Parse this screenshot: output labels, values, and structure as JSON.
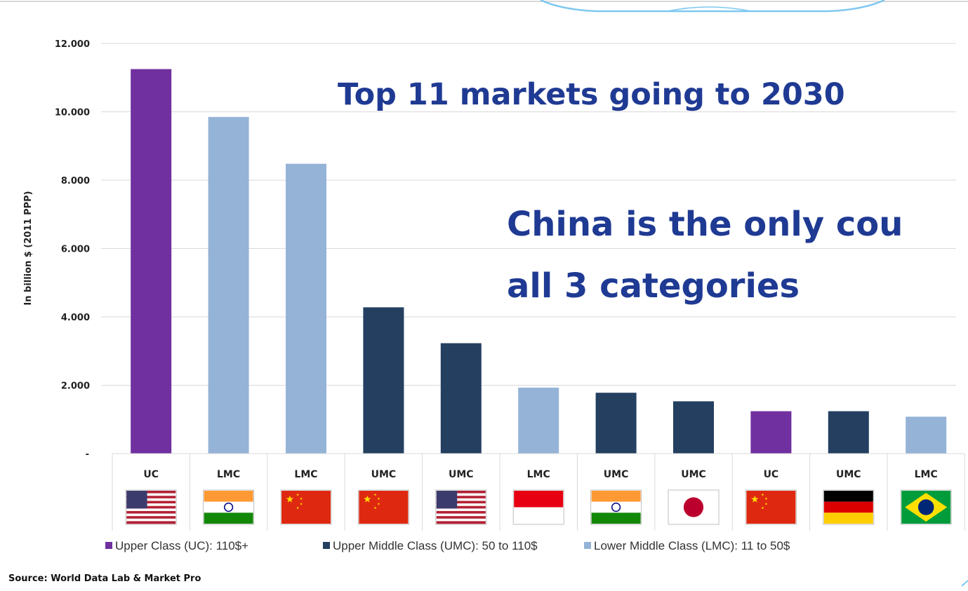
{
  "headline_1": "Top 11 markets going to 2030",
  "headline_2": "China is the only cou",
  "headline_3": "all 3 categories",
  "source": "Source: World Data Lab & Market Pro",
  "chart_data": {
    "type": "bar",
    "ylabel": "In billion $ (2011 PPP)",
    "ylim": [
      0,
      12000
    ],
    "yticks": [
      {
        "value": 0,
        "label": "-"
      },
      {
        "value": 2000,
        "label": "2.000"
      },
      {
        "value": 4000,
        "label": "4.000"
      },
      {
        "value": 6000,
        "label": "6.000"
      },
      {
        "value": 8000,
        "label": "8.000"
      },
      {
        "value": 10000,
        "label": "10.000"
      },
      {
        "value": 12000,
        "label": "12.000"
      }
    ],
    "grid": true,
    "legend_position": "bottom",
    "legend": [
      {
        "key": "UC",
        "label": "Upper Class (UC): 110$+",
        "color": "#7030a0"
      },
      {
        "key": "UMC",
        "label": "Upper Middle Class (UMC): 50 to 110$",
        "color": "#243f60"
      },
      {
        "key": "LMC",
        "label": "Lower Middle Class (LMC): 11 to 50$",
        "color": "#95b3d7"
      }
    ],
    "bars": [
      {
        "label": "UC",
        "class": "UC",
        "flag": "usa-flag-icon",
        "value": 11250
      },
      {
        "label": "LMC",
        "class": "LMC",
        "flag": "india-flag-icon",
        "value": 9850
      },
      {
        "label": "LMC",
        "class": "LMC",
        "flag": "china-flag-icon",
        "value": 8480
      },
      {
        "label": "UMC",
        "class": "UMC",
        "flag": "china-flag-icon",
        "value": 4280
      },
      {
        "label": "UMC",
        "class": "UMC",
        "flag": "usa-flag-icon",
        "value": 3230
      },
      {
        "label": "LMC",
        "class": "LMC",
        "flag": "indonesia-flag-icon",
        "value": 1930
      },
      {
        "label": "UMC",
        "class": "UMC",
        "flag": "india-flag-icon",
        "value": 1780
      },
      {
        "label": "UMC",
        "class": "UMC",
        "flag": "japan-flag-icon",
        "value": 1530
      },
      {
        "label": "UC",
        "class": "UC",
        "flag": "china-flag-icon",
        "value": 1240
      },
      {
        "label": "UMC",
        "class": "UMC",
        "flag": "germany-flag-icon",
        "value": 1240
      },
      {
        "label": "LMC",
        "class": "LMC",
        "flag": "brazil-flag-icon",
        "value": 1080
      }
    ]
  }
}
